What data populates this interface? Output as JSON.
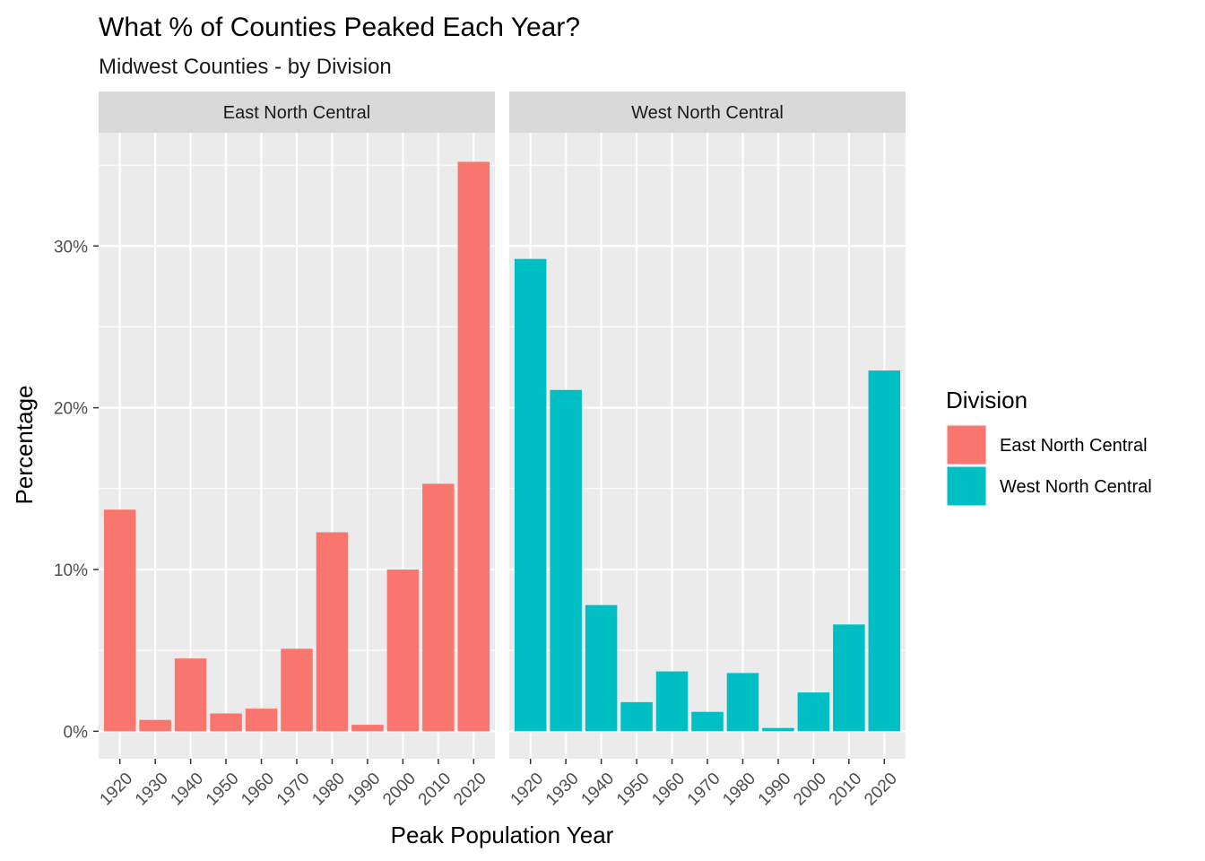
{
  "chart_data": {
    "type": "bar",
    "title": "What % of Counties Peaked Each Year?",
    "subtitle": "Midwest Counties - by Division",
    "xlabel": "Peak Population Year",
    "ylabel": "Percentage",
    "categories": [
      "1920",
      "1930",
      "1940",
      "1950",
      "1960",
      "1970",
      "1980",
      "1990",
      "2000",
      "2010",
      "2020"
    ],
    "y_ticks": [
      0,
      10,
      20,
      30
    ],
    "y_tick_labels": [
      "0%",
      "10%",
      "20%",
      "30%"
    ],
    "ylim": [
      -1.7,
      37.0
    ],
    "grid": true,
    "legend": {
      "title": "Division",
      "position": "right",
      "entries": [
        {
          "label": "East North Central",
          "color": "#F8766D"
        },
        {
          "label": "West North Central",
          "color": "#00BFC4"
        }
      ]
    },
    "facets": [
      {
        "name": "East North Central",
        "color": "#F8766D",
        "values": [
          13.7,
          0.7,
          4.5,
          1.1,
          1.4,
          5.1,
          12.3,
          0.4,
          10.0,
          15.3,
          35.2
        ]
      },
      {
        "name": "West North Central",
        "color": "#00BFC4",
        "values": [
          29.2,
          21.1,
          7.8,
          1.8,
          3.7,
          1.2,
          3.6,
          0.2,
          2.4,
          6.6,
          22.3
        ]
      }
    ]
  }
}
